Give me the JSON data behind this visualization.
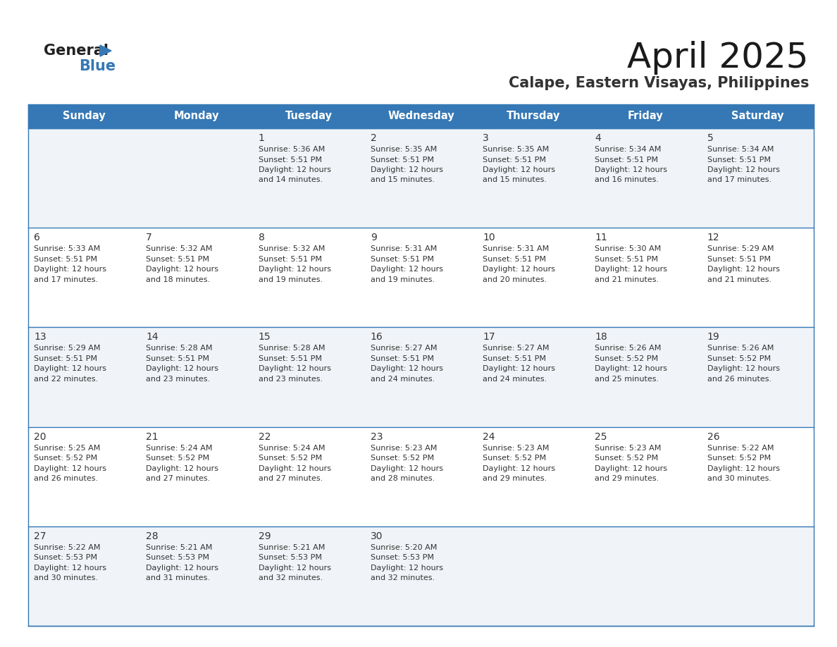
{
  "title": "April 2025",
  "subtitle": "Calape, Eastern Visayas, Philippines",
  "days_of_week": [
    "Sunday",
    "Monday",
    "Tuesday",
    "Wednesday",
    "Thursday",
    "Friday",
    "Saturday"
  ],
  "header_bg": "#3578b5",
  "header_text": "#ffffff",
  "cell_bg_odd": "#f0f4f8",
  "cell_bg_even": "#ffffff",
  "cell_border_color": "#3578b5",
  "cell_divider_color": "#3578b5",
  "text_color": "#333333",
  "logo_general_color": "#222222",
  "logo_blue_color": "#3578b5",
  "logo_triangle_color": "#3578b5",
  "calendar": [
    [
      {
        "day": "",
        "lines": []
      },
      {
        "day": "",
        "lines": []
      },
      {
        "day": "1",
        "lines": [
          "Sunrise: 5:36 AM",
          "Sunset: 5:51 PM",
          "Daylight: 12 hours",
          "and 14 minutes."
        ]
      },
      {
        "day": "2",
        "lines": [
          "Sunrise: 5:35 AM",
          "Sunset: 5:51 PM",
          "Daylight: 12 hours",
          "and 15 minutes."
        ]
      },
      {
        "day": "3",
        "lines": [
          "Sunrise: 5:35 AM",
          "Sunset: 5:51 PM",
          "Daylight: 12 hours",
          "and 15 minutes."
        ]
      },
      {
        "day": "4",
        "lines": [
          "Sunrise: 5:34 AM",
          "Sunset: 5:51 PM",
          "Daylight: 12 hours",
          "and 16 minutes."
        ]
      },
      {
        "day": "5",
        "lines": [
          "Sunrise: 5:34 AM",
          "Sunset: 5:51 PM",
          "Daylight: 12 hours",
          "and 17 minutes."
        ]
      }
    ],
    [
      {
        "day": "6",
        "lines": [
          "Sunrise: 5:33 AM",
          "Sunset: 5:51 PM",
          "Daylight: 12 hours",
          "and 17 minutes."
        ]
      },
      {
        "day": "7",
        "lines": [
          "Sunrise: 5:32 AM",
          "Sunset: 5:51 PM",
          "Daylight: 12 hours",
          "and 18 minutes."
        ]
      },
      {
        "day": "8",
        "lines": [
          "Sunrise: 5:32 AM",
          "Sunset: 5:51 PM",
          "Daylight: 12 hours",
          "and 19 minutes."
        ]
      },
      {
        "day": "9",
        "lines": [
          "Sunrise: 5:31 AM",
          "Sunset: 5:51 PM",
          "Daylight: 12 hours",
          "and 19 minutes."
        ]
      },
      {
        "day": "10",
        "lines": [
          "Sunrise: 5:31 AM",
          "Sunset: 5:51 PM",
          "Daylight: 12 hours",
          "and 20 minutes."
        ]
      },
      {
        "day": "11",
        "lines": [
          "Sunrise: 5:30 AM",
          "Sunset: 5:51 PM",
          "Daylight: 12 hours",
          "and 21 minutes."
        ]
      },
      {
        "day": "12",
        "lines": [
          "Sunrise: 5:29 AM",
          "Sunset: 5:51 PM",
          "Daylight: 12 hours",
          "and 21 minutes."
        ]
      }
    ],
    [
      {
        "day": "13",
        "lines": [
          "Sunrise: 5:29 AM",
          "Sunset: 5:51 PM",
          "Daylight: 12 hours",
          "and 22 minutes."
        ]
      },
      {
        "day": "14",
        "lines": [
          "Sunrise: 5:28 AM",
          "Sunset: 5:51 PM",
          "Daylight: 12 hours",
          "and 23 minutes."
        ]
      },
      {
        "day": "15",
        "lines": [
          "Sunrise: 5:28 AM",
          "Sunset: 5:51 PM",
          "Daylight: 12 hours",
          "and 23 minutes."
        ]
      },
      {
        "day": "16",
        "lines": [
          "Sunrise: 5:27 AM",
          "Sunset: 5:51 PM",
          "Daylight: 12 hours",
          "and 24 minutes."
        ]
      },
      {
        "day": "17",
        "lines": [
          "Sunrise: 5:27 AM",
          "Sunset: 5:51 PM",
          "Daylight: 12 hours",
          "and 24 minutes."
        ]
      },
      {
        "day": "18",
        "lines": [
          "Sunrise: 5:26 AM",
          "Sunset: 5:52 PM",
          "Daylight: 12 hours",
          "and 25 minutes."
        ]
      },
      {
        "day": "19",
        "lines": [
          "Sunrise: 5:26 AM",
          "Sunset: 5:52 PM",
          "Daylight: 12 hours",
          "and 26 minutes."
        ]
      }
    ],
    [
      {
        "day": "20",
        "lines": [
          "Sunrise: 5:25 AM",
          "Sunset: 5:52 PM",
          "Daylight: 12 hours",
          "and 26 minutes."
        ]
      },
      {
        "day": "21",
        "lines": [
          "Sunrise: 5:24 AM",
          "Sunset: 5:52 PM",
          "Daylight: 12 hours",
          "and 27 minutes."
        ]
      },
      {
        "day": "22",
        "lines": [
          "Sunrise: 5:24 AM",
          "Sunset: 5:52 PM",
          "Daylight: 12 hours",
          "and 27 minutes."
        ]
      },
      {
        "day": "23",
        "lines": [
          "Sunrise: 5:23 AM",
          "Sunset: 5:52 PM",
          "Daylight: 12 hours",
          "and 28 minutes."
        ]
      },
      {
        "day": "24",
        "lines": [
          "Sunrise: 5:23 AM",
          "Sunset: 5:52 PM",
          "Daylight: 12 hours",
          "and 29 minutes."
        ]
      },
      {
        "day": "25",
        "lines": [
          "Sunrise: 5:23 AM",
          "Sunset: 5:52 PM",
          "Daylight: 12 hours",
          "and 29 minutes."
        ]
      },
      {
        "day": "26",
        "lines": [
          "Sunrise: 5:22 AM",
          "Sunset: 5:52 PM",
          "Daylight: 12 hours",
          "and 30 minutes."
        ]
      }
    ],
    [
      {
        "day": "27",
        "lines": [
          "Sunrise: 5:22 AM",
          "Sunset: 5:53 PM",
          "Daylight: 12 hours",
          "and 30 minutes."
        ]
      },
      {
        "day": "28",
        "lines": [
          "Sunrise: 5:21 AM",
          "Sunset: 5:53 PM",
          "Daylight: 12 hours",
          "and 31 minutes."
        ]
      },
      {
        "day": "29",
        "lines": [
          "Sunrise: 5:21 AM",
          "Sunset: 5:53 PM",
          "Daylight: 12 hours",
          "and 32 minutes."
        ]
      },
      {
        "day": "30",
        "lines": [
          "Sunrise: 5:20 AM",
          "Sunset: 5:53 PM",
          "Daylight: 12 hours",
          "and 32 minutes."
        ]
      },
      {
        "day": "",
        "lines": []
      },
      {
        "day": "",
        "lines": []
      },
      {
        "day": "",
        "lines": []
      }
    ]
  ]
}
